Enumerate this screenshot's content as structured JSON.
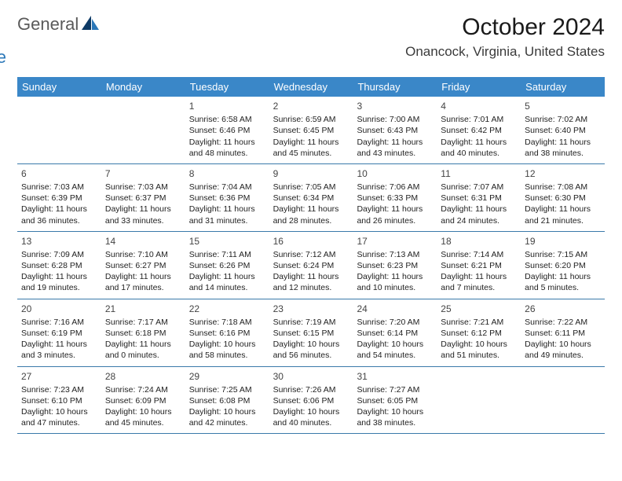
{
  "logo": {
    "text_general": "General",
    "text_blue": "Blue"
  },
  "title": "October 2024",
  "location": "Onancock, Virginia, United States",
  "colors": {
    "header_bg": "#3a87c8",
    "header_text": "#ffffff",
    "row_border": "#3a7aaa",
    "title_color": "#1a1a1a",
    "logo_gray": "#5a5a5a",
    "logo_blue": "#2a77b8",
    "logo_navy": "#0d3a66"
  },
  "day_names": [
    "Sunday",
    "Monday",
    "Tuesday",
    "Wednesday",
    "Thursday",
    "Friday",
    "Saturday"
  ],
  "weeks": [
    [
      null,
      null,
      {
        "day": "1",
        "sunrise": "6:58 AM",
        "sunset": "6:46 PM",
        "daylight": "11 hours and 48 minutes."
      },
      {
        "day": "2",
        "sunrise": "6:59 AM",
        "sunset": "6:45 PM",
        "daylight": "11 hours and 45 minutes."
      },
      {
        "day": "3",
        "sunrise": "7:00 AM",
        "sunset": "6:43 PM",
        "daylight": "11 hours and 43 minutes."
      },
      {
        "day": "4",
        "sunrise": "7:01 AM",
        "sunset": "6:42 PM",
        "daylight": "11 hours and 40 minutes."
      },
      {
        "day": "5",
        "sunrise": "7:02 AM",
        "sunset": "6:40 PM",
        "daylight": "11 hours and 38 minutes."
      }
    ],
    [
      {
        "day": "6",
        "sunrise": "7:03 AM",
        "sunset": "6:39 PM",
        "daylight": "11 hours and 36 minutes."
      },
      {
        "day": "7",
        "sunrise": "7:03 AM",
        "sunset": "6:37 PM",
        "daylight": "11 hours and 33 minutes."
      },
      {
        "day": "8",
        "sunrise": "7:04 AM",
        "sunset": "6:36 PM",
        "daylight": "11 hours and 31 minutes."
      },
      {
        "day": "9",
        "sunrise": "7:05 AM",
        "sunset": "6:34 PM",
        "daylight": "11 hours and 28 minutes."
      },
      {
        "day": "10",
        "sunrise": "7:06 AM",
        "sunset": "6:33 PM",
        "daylight": "11 hours and 26 minutes."
      },
      {
        "day": "11",
        "sunrise": "7:07 AM",
        "sunset": "6:31 PM",
        "daylight": "11 hours and 24 minutes."
      },
      {
        "day": "12",
        "sunrise": "7:08 AM",
        "sunset": "6:30 PM",
        "daylight": "11 hours and 21 minutes."
      }
    ],
    [
      {
        "day": "13",
        "sunrise": "7:09 AM",
        "sunset": "6:28 PM",
        "daylight": "11 hours and 19 minutes."
      },
      {
        "day": "14",
        "sunrise": "7:10 AM",
        "sunset": "6:27 PM",
        "daylight": "11 hours and 17 minutes."
      },
      {
        "day": "15",
        "sunrise": "7:11 AM",
        "sunset": "6:26 PM",
        "daylight": "11 hours and 14 minutes."
      },
      {
        "day": "16",
        "sunrise": "7:12 AM",
        "sunset": "6:24 PM",
        "daylight": "11 hours and 12 minutes."
      },
      {
        "day": "17",
        "sunrise": "7:13 AM",
        "sunset": "6:23 PM",
        "daylight": "11 hours and 10 minutes."
      },
      {
        "day": "18",
        "sunrise": "7:14 AM",
        "sunset": "6:21 PM",
        "daylight": "11 hours and 7 minutes."
      },
      {
        "day": "19",
        "sunrise": "7:15 AM",
        "sunset": "6:20 PM",
        "daylight": "11 hours and 5 minutes."
      }
    ],
    [
      {
        "day": "20",
        "sunrise": "7:16 AM",
        "sunset": "6:19 PM",
        "daylight": "11 hours and 3 minutes."
      },
      {
        "day": "21",
        "sunrise": "7:17 AM",
        "sunset": "6:18 PM",
        "daylight": "11 hours and 0 minutes."
      },
      {
        "day": "22",
        "sunrise": "7:18 AM",
        "sunset": "6:16 PM",
        "daylight": "10 hours and 58 minutes."
      },
      {
        "day": "23",
        "sunrise": "7:19 AM",
        "sunset": "6:15 PM",
        "daylight": "10 hours and 56 minutes."
      },
      {
        "day": "24",
        "sunrise": "7:20 AM",
        "sunset": "6:14 PM",
        "daylight": "10 hours and 54 minutes."
      },
      {
        "day": "25",
        "sunrise": "7:21 AM",
        "sunset": "6:12 PM",
        "daylight": "10 hours and 51 minutes."
      },
      {
        "day": "26",
        "sunrise": "7:22 AM",
        "sunset": "6:11 PM",
        "daylight": "10 hours and 49 minutes."
      }
    ],
    [
      {
        "day": "27",
        "sunrise": "7:23 AM",
        "sunset": "6:10 PM",
        "daylight": "10 hours and 47 minutes."
      },
      {
        "day": "28",
        "sunrise": "7:24 AM",
        "sunset": "6:09 PM",
        "daylight": "10 hours and 45 minutes."
      },
      {
        "day": "29",
        "sunrise": "7:25 AM",
        "sunset": "6:08 PM",
        "daylight": "10 hours and 42 minutes."
      },
      {
        "day": "30",
        "sunrise": "7:26 AM",
        "sunset": "6:06 PM",
        "daylight": "10 hours and 40 minutes."
      },
      {
        "day": "31",
        "sunrise": "7:27 AM",
        "sunset": "6:05 PM",
        "daylight": "10 hours and 38 minutes."
      },
      null,
      null
    ]
  ],
  "labels": {
    "sunrise": "Sunrise:",
    "sunset": "Sunset:",
    "daylight": "Daylight:"
  }
}
